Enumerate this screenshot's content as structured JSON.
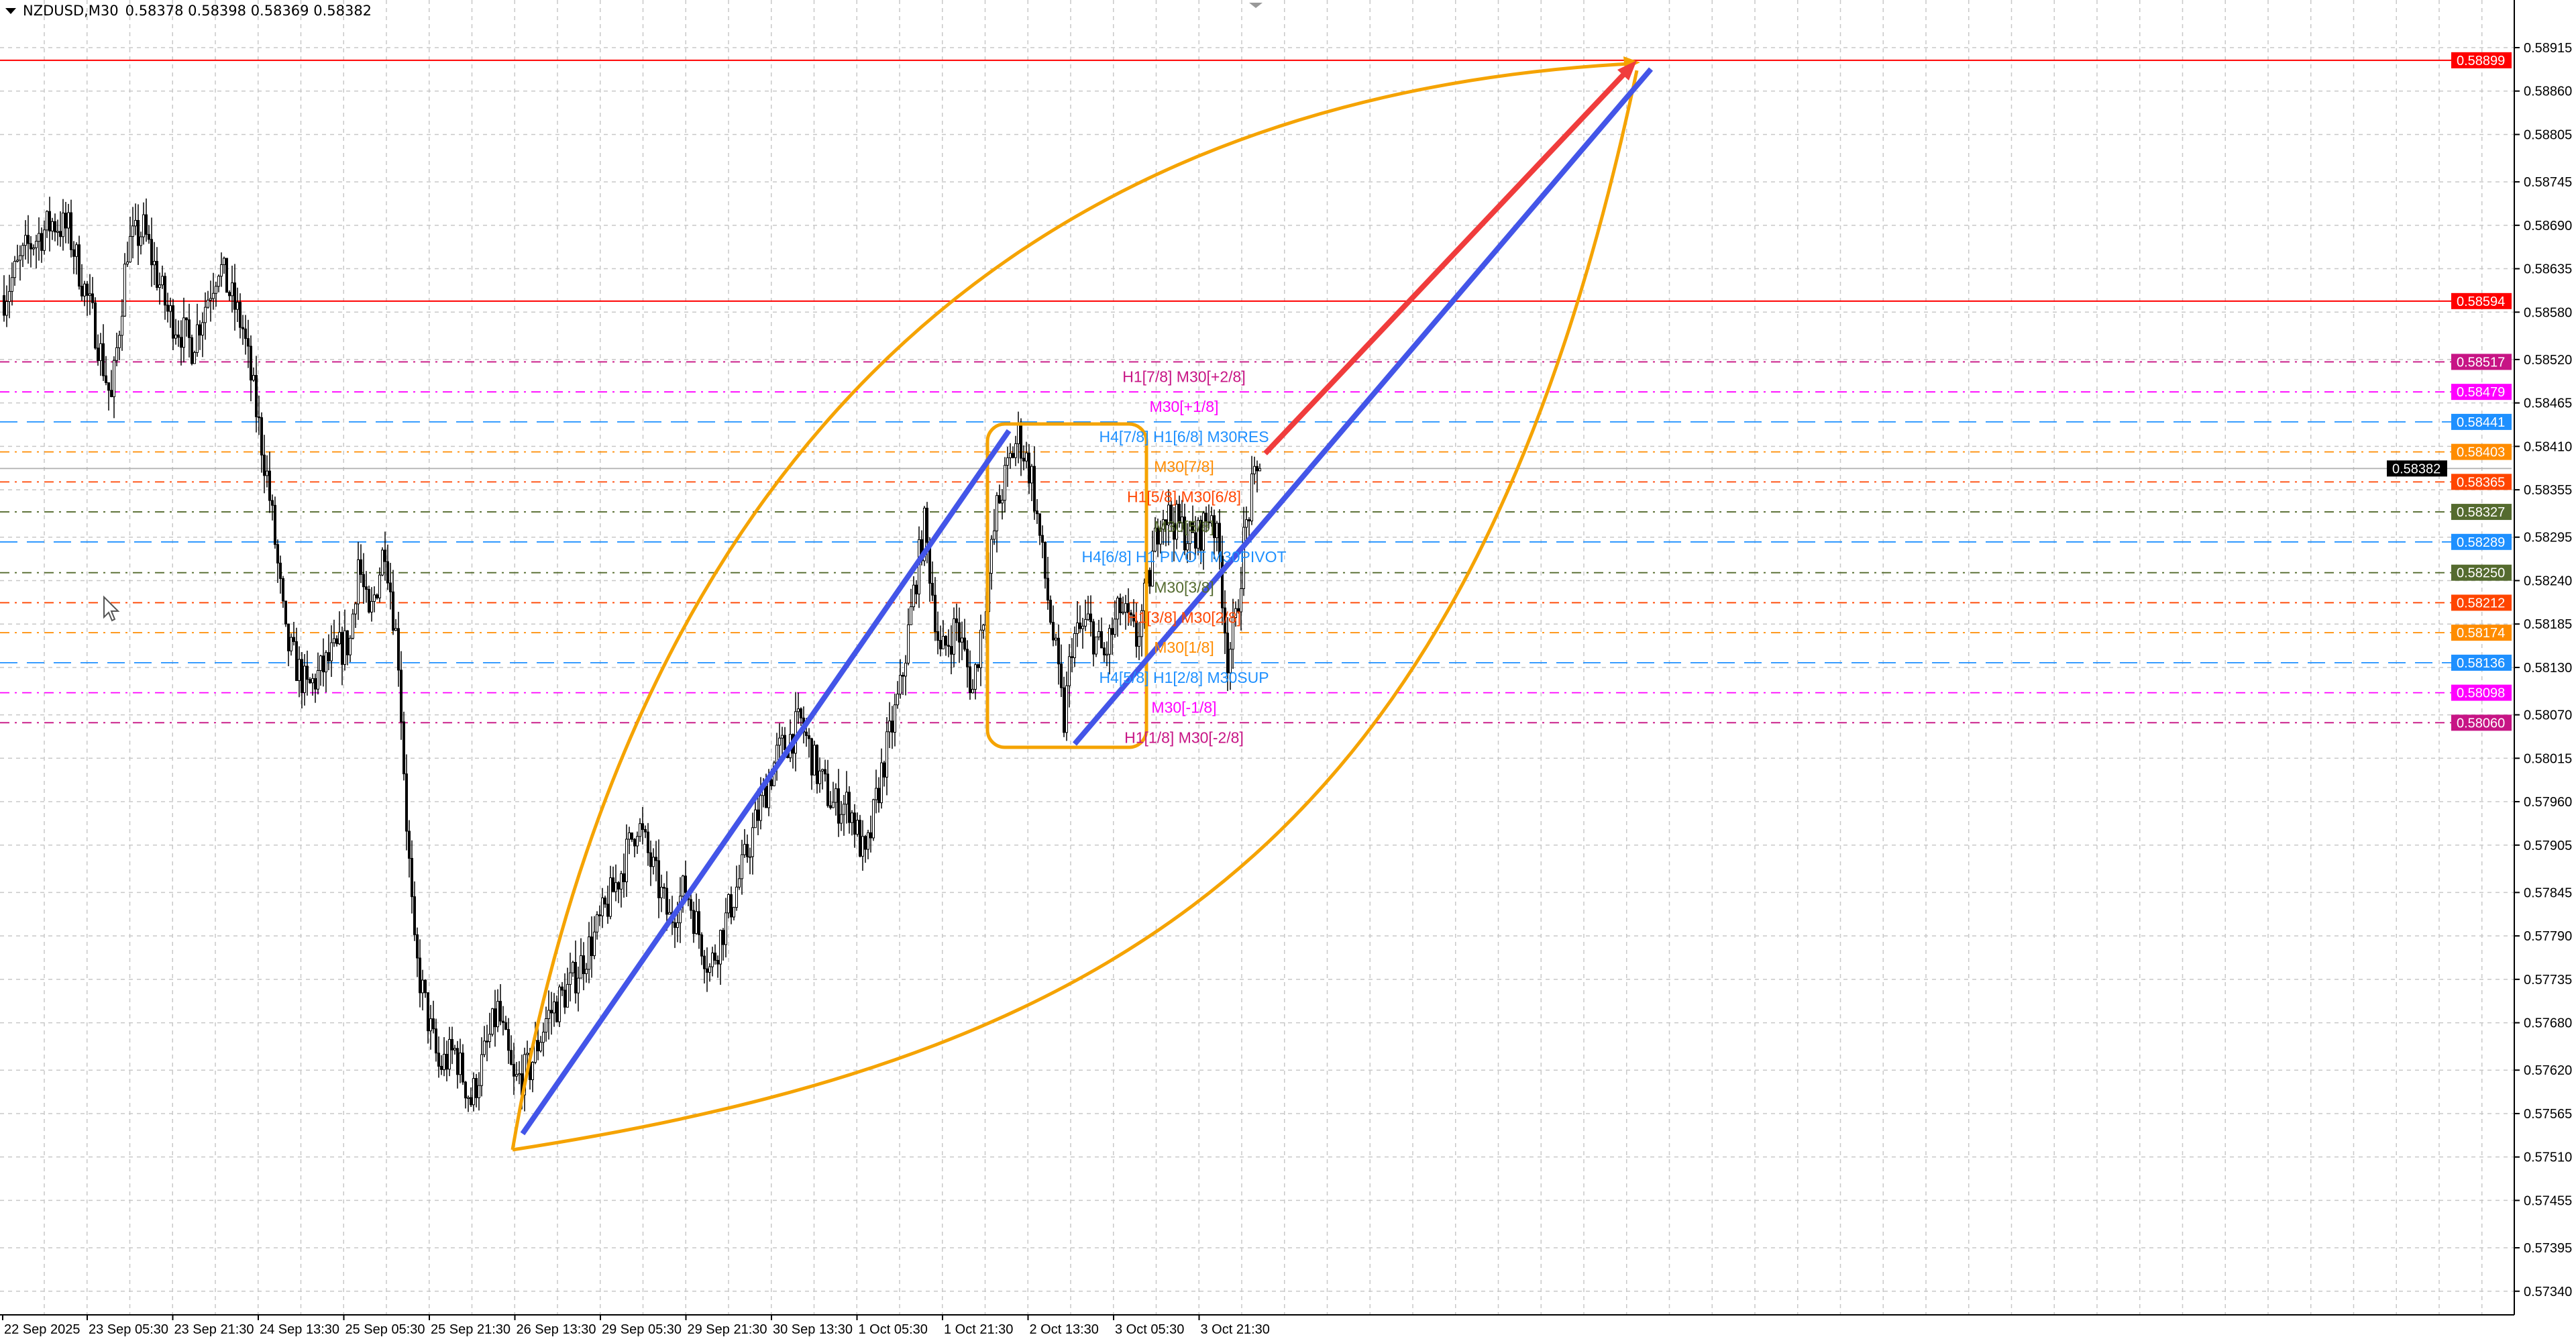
{
  "header": {
    "symbol": "NZDUSD,M30",
    "ohlc": "0.58378 0.58398 0.58369 0.58382"
  },
  "chart_data": {
    "type": "candlestick",
    "title": "NZDUSD,M30",
    "ylim": [
      0.573,
      0.5895
    ],
    "grid": true,
    "price_ticks": [
      "0.58915",
      "0.58860",
      "0.58805",
      "0.58745",
      "0.58690",
      "0.58635",
      "0.58580",
      "0.58520",
      "0.58465",
      "0.58410",
      "0.58355",
      "0.58295",
      "0.58240",
      "0.58185",
      "0.58130",
      "0.58070",
      "0.58015",
      "0.57960",
      "0.57905",
      "0.57845",
      "0.57790",
      "0.57735",
      "0.57680",
      "0.57620",
      "0.57565",
      "0.57510",
      "0.57455",
      "0.57395",
      "0.57340"
    ],
    "time_ticks": [
      "22 Sep 2025",
      "23 Sep 05:30",
      "23 Sep 21:30",
      "24 Sep 13:30",
      "25 Sep 05:30",
      "25 Sep 21:30",
      "26 Sep 13:30",
      "29 Sep 05:30",
      "29 Sep 21:30",
      "30 Sep 13:30",
      "1 Oct 05:30",
      "1 Oct 21:30",
      "2 Oct 13:30",
      "3 Oct 05:30",
      "3 Oct 21:30"
    ],
    "price_path": [
      [
        0,
        0.58601
      ],
      [
        9,
        0.58663
      ],
      [
        18,
        0.58694
      ],
      [
        24,
        0.58684
      ],
      [
        34,
        0.58559
      ],
      [
        40,
        0.58466
      ],
      [
        46,
        0.58663
      ],
      [
        52,
        0.58684
      ],
      [
        61,
        0.5858
      ],
      [
        70,
        0.58538
      ],
      [
        80,
        0.58642
      ],
      [
        89,
        0.58559
      ],
      [
        92,
        0.58497
      ],
      [
        98,
        0.58372
      ],
      [
        101,
        0.58289
      ],
      [
        105,
        0.58164
      ],
      [
        113,
        0.58101
      ],
      [
        122,
        0.58143
      ],
      [
        129,
        0.58164
      ],
      [
        132,
        0.58268
      ],
      [
        136,
        0.58185
      ],
      [
        142,
        0.58289
      ],
      [
        147,
        0.58143
      ],
      [
        150,
        0.57935
      ],
      [
        153,
        0.57768
      ],
      [
        158,
        0.57685
      ],
      [
        162,
        0.57623
      ],
      [
        168,
        0.57644
      ],
      [
        174,
        0.57581
      ],
      [
        184,
        0.57696
      ],
      [
        190,
        0.57602
      ],
      [
        196,
        0.57623
      ],
      [
        202,
        0.57685
      ],
      [
        211,
        0.57727
      ],
      [
        220,
        0.57789
      ],
      [
        230,
        0.57872
      ],
      [
        236,
        0.57935
      ],
      [
        242,
        0.57872
      ],
      [
        248,
        0.5781
      ],
      [
        254,
        0.57852
      ],
      [
        263,
        0.57748
      ],
      [
        269,
        0.5781
      ],
      [
        275,
        0.57872
      ],
      [
        282,
        0.57956
      ],
      [
        288,
        0.58018
      ],
      [
        297,
        0.5806
      ],
      [
        303,
        0.57997
      ],
      [
        309,
        0.57956
      ],
      [
        315,
        0.57956
      ],
      [
        321,
        0.57883
      ],
      [
        327,
        0.57997
      ],
      [
        334,
        0.58101
      ],
      [
        340,
        0.58247
      ],
      [
        343,
        0.58309
      ],
      [
        349,
        0.58143
      ],
      [
        355,
        0.58185
      ],
      [
        361,
        0.58101
      ],
      [
        367,
        0.58247
      ],
      [
        370,
        0.5833
      ],
      [
        375,
        0.58393
      ],
      [
        378,
        0.58424
      ],
      [
        383,
        0.58372
      ],
      [
        387,
        0.58268
      ],
      [
        392,
        0.58143
      ],
      [
        395,
        0.5806
      ],
      [
        398,
        0.58164
      ],
      [
        404,
        0.58185
      ],
      [
        410,
        0.58143
      ],
      [
        416,
        0.58205
      ],
      [
        422,
        0.58164
      ],
      [
        427,
        0.58247
      ],
      [
        431,
        0.5833
      ],
      [
        438,
        0.58309
      ],
      [
        444,
        0.58289
      ],
      [
        450,
        0.5833
      ],
      [
        453,
        0.58268
      ],
      [
        456,
        0.58143
      ],
      [
        459,
        0.58185
      ],
      [
        462,
        0.58289
      ],
      [
        465,
        0.58351
      ],
      [
        468,
        0.58382
      ]
    ],
    "levels": [
      {
        "price": 0.58899,
        "label": "0.58899",
        "color": "#ff0000",
        "style": "solid",
        "text": ""
      },
      {
        "price": 0.58594,
        "label": "0.58594",
        "color": "#ff0000",
        "style": "solid",
        "text": ""
      },
      {
        "price": 0.58517,
        "label": "0.58517",
        "color": "#c71585",
        "style": "dashdot",
        "text": "H1[7/8] M30[+2/8]"
      },
      {
        "price": 0.58479,
        "label": "0.58479",
        "color": "#ff00ff",
        "style": "dashdot",
        "text": "M30[+1/8]"
      },
      {
        "price": 0.58441,
        "label": "0.58441",
        "color": "#1e90ff",
        "style": "dash",
        "text": "H4[7/8] H1[6/8] M30RES"
      },
      {
        "price": 0.58403,
        "label": "0.58403",
        "color": "#ff8c00",
        "style": "dashdot",
        "text": "M30[7/8]"
      },
      {
        "price": 0.58382,
        "label": "0.58382",
        "color": "#000000",
        "style": "current",
        "text": ""
      },
      {
        "price": 0.58365,
        "label": "0.58365",
        "color": "#ff4500",
        "style": "dashdot",
        "text": "H1[5/8] M30[6/8]"
      },
      {
        "price": 0.58327,
        "label": "0.58327",
        "color": "#556b2f",
        "style": "dashdot",
        "text": "M30[5/8]"
      },
      {
        "price": 0.58289,
        "label": "0.58289",
        "color": "#1e90ff",
        "style": "dash",
        "text": "H4[6/8] H1 PIVOT M30PIVOT"
      },
      {
        "price": 0.5825,
        "label": "0.58250",
        "color": "#556b2f",
        "style": "dashdot",
        "text": "M30[3/8]"
      },
      {
        "price": 0.58212,
        "label": "0.58212",
        "color": "#ff4500",
        "style": "dashdot",
        "text": "H1[3/8] M30[2/8]"
      },
      {
        "price": 0.58174,
        "label": "0.58174",
        "color": "#ff8c00",
        "style": "dashdot",
        "text": "M30[1/8]"
      },
      {
        "price": 0.58136,
        "label": "0.58136",
        "color": "#1e90ff",
        "style": "dash",
        "text": "H4[5/8] H1[2/8] M30SUP"
      },
      {
        "price": 0.58098,
        "label": "0.58098",
        "color": "#ff00ff",
        "style": "dashdot",
        "text": "M30[-1/8]"
      },
      {
        "price": 0.5806,
        "label": "0.58060",
        "color": "#c71585",
        "style": "dashdot",
        "text": "H1[1/8] M30[-2/8]"
      }
    ],
    "drawings": {
      "channel_color": "#4355e8",
      "arrow_color": "#f03c3c",
      "curve_color": "#f5a300",
      "box_color": "#f5a300"
    }
  }
}
